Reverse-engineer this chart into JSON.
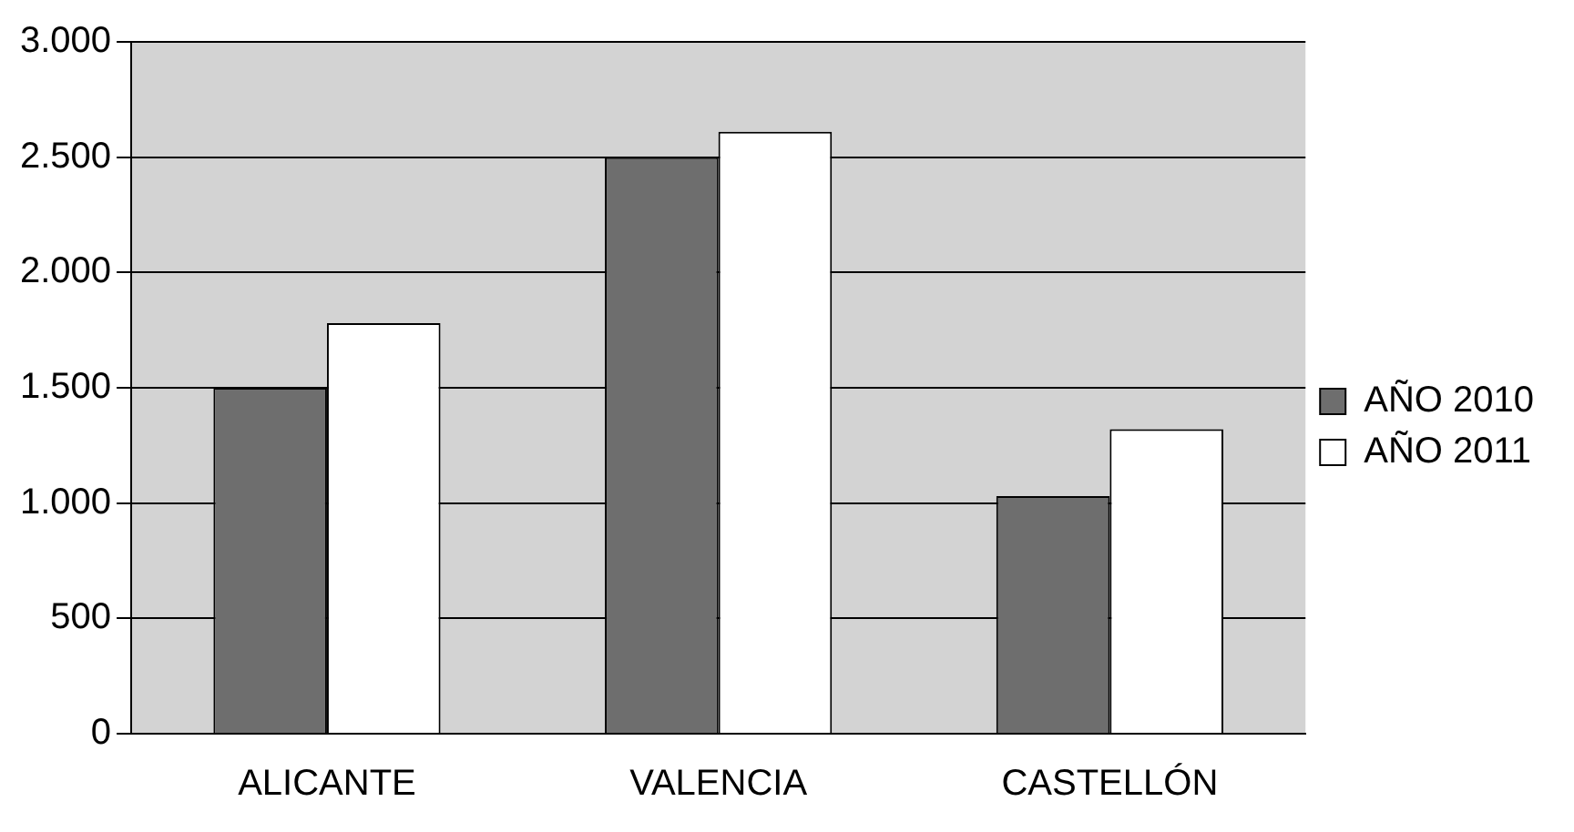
{
  "chart_data": {
    "type": "bar",
    "categories": [
      "ALICANTE",
      "VALENCIA",
      "CASTELLÓN"
    ],
    "series": [
      {
        "name": "AÑO 2010",
        "color": "#6e6e6e",
        "values": [
          1500,
          2500,
          1030
        ]
      },
      {
        "name": "AÑO 2011",
        "color": "#ffffff",
        "values": [
          1780,
          2610,
          1320
        ]
      }
    ],
    "ylim": [
      0,
      3000
    ],
    "yticks": [
      0,
      500,
      {
        "value": 1000,
        "label": "1.000"
      },
      {
        "value": 1500,
        "label": "1.500"
      },
      {
        "value": 2000,
        "label": "2.000"
      },
      {
        "value": 2500,
        "label": "2.500"
      },
      {
        "value": 3000,
        "label": "3.000"
      }
    ],
    "grid": "y",
    "legend": "right"
  }
}
